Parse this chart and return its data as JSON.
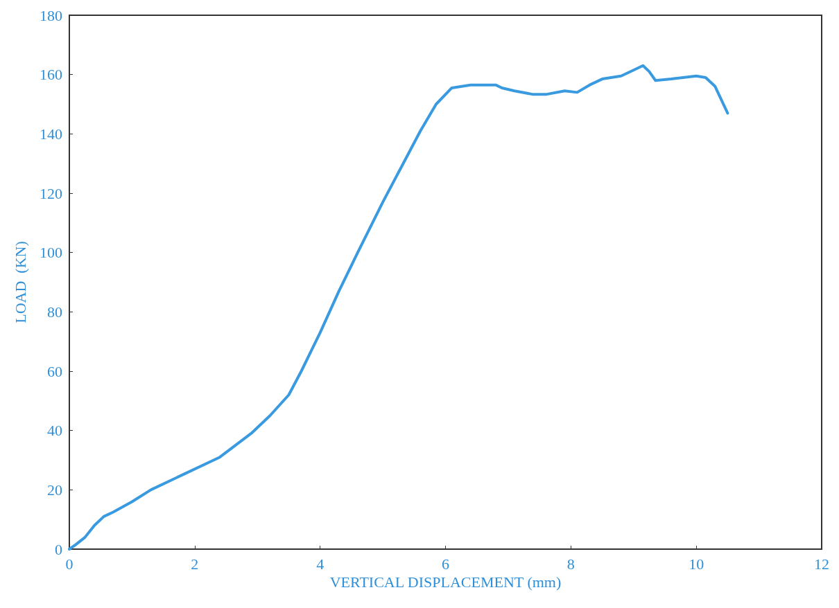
{
  "chart_data": {
    "type": "line",
    "xlabel": "VERTICAL DISPLACEMENT (mm)",
    "ylabel": "LOAD  (KN)",
    "xlim": [
      0,
      12
    ],
    "xticks": [
      0,
      2,
      4,
      6,
      8,
      10,
      12
    ],
    "ylim": [
      0,
      180
    ],
    "yticks": [
      0,
      20,
      40,
      60,
      80,
      100,
      120,
      140,
      160,
      180
    ],
    "grid": false,
    "marker": "none",
    "line_style": "solid",
    "series": [
      {
        "color": "#3a9ae0",
        "x": [
          0,
          0.1,
          0.25,
          0.4,
          0.55,
          0.7,
          1,
          1.3,
          1.8,
          2.4,
          2.9,
          3.2,
          3.5,
          3.7,
          4.0,
          4.3,
          4.6,
          5.0,
          5.3,
          5.6,
          5.85,
          6.1,
          6.4,
          6.8,
          6.9,
          7.1,
          7.4,
          7.6,
          7.9,
          8.1,
          8.3,
          8.5,
          8.8,
          9.0,
          9.15,
          9.25,
          9.35,
          9.6,
          10.0,
          10.15,
          10.3,
          10.5
        ],
        "values": [
          0,
          1.5,
          4,
          8,
          11,
          12.5,
          16,
          20,
          25,
          31,
          39,
          45,
          52,
          60,
          73,
          87,
          100,
          117,
          129,
          141,
          150,
          155.5,
          156.5,
          156.5,
          155.5,
          154.5,
          153.3,
          153.3,
          154.5,
          154,
          156.5,
          158.5,
          159.5,
          161.5,
          163,
          161,
          158,
          158.5,
          159.5,
          159,
          156,
          147
        ]
      }
    ]
  }
}
